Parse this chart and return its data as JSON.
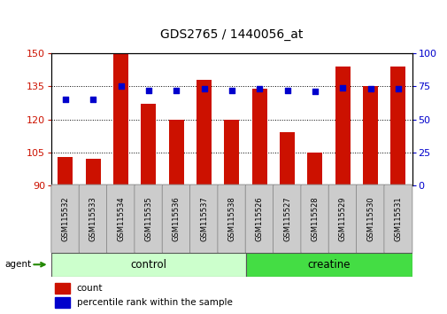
{
  "title": "GDS2765 / 1440056_at",
  "samples": [
    "GSM115532",
    "GSM115533",
    "GSM115534",
    "GSM115535",
    "GSM115536",
    "GSM115537",
    "GSM115538",
    "GSM115526",
    "GSM115527",
    "GSM115528",
    "GSM115529",
    "GSM115530",
    "GSM115531"
  ],
  "counts": [
    103,
    102,
    150,
    127,
    120,
    138,
    120,
    134,
    114,
    105,
    144,
    135,
    144
  ],
  "percentiles": [
    65,
    65,
    75,
    72,
    72,
    73,
    72,
    73,
    72,
    71,
    74,
    73,
    73
  ],
  "groups": [
    "control",
    "control",
    "control",
    "control",
    "control",
    "control",
    "control",
    "creatine",
    "creatine",
    "creatine",
    "creatine",
    "creatine",
    "creatine"
  ],
  "ylim_left": [
    90,
    150
  ],
  "ylim_right": [
    0,
    100
  ],
  "yticks_left": [
    90,
    105,
    120,
    135,
    150
  ],
  "yticks_right": [
    0,
    25,
    50,
    75,
    100
  ],
  "bar_color": "#cc1100",
  "dot_color": "#0000cc",
  "control_color": "#ccffcc",
  "creatine_color": "#44dd44",
  "tick_bg_color": "#cccccc",
  "agent_arrow_color": "#228800",
  "legend_count_color": "#cc1100",
  "legend_pct_color": "#0000cc",
  "n_control": 7,
  "n_creatine": 6
}
